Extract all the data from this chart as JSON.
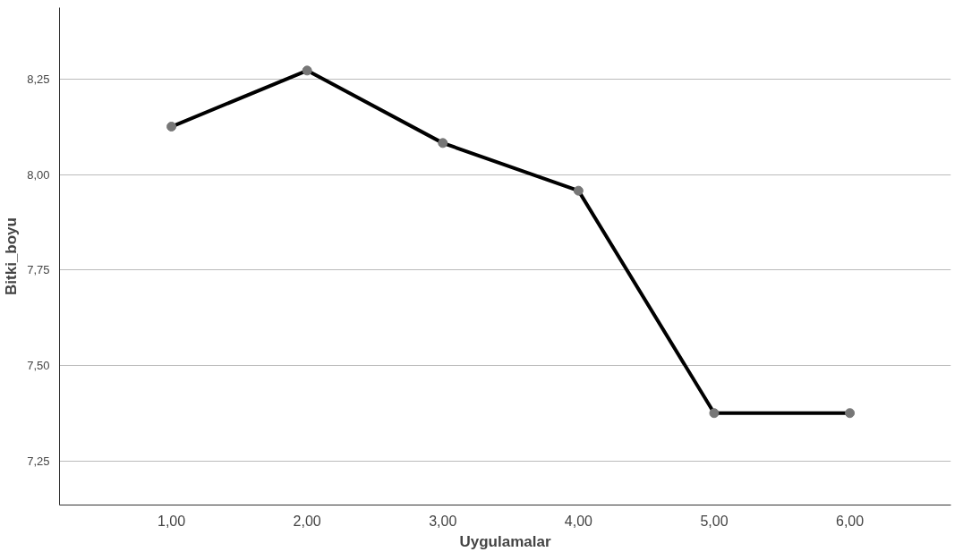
{
  "chart_data": {
    "type": "line",
    "xlabel": "Uygulamalar",
    "ylabel": "Bitki_boyu",
    "x": [
      1,
      2,
      3,
      4,
      5,
      6
    ],
    "series": [
      {
        "color": "#000000",
        "values": [
          8.126,
          8.273,
          8.083,
          7.958,
          7.375,
          7.375
        ]
      }
    ],
    "xlim": [
      0.175,
      6.745
    ],
    "ylim": [
      7.134,
      8.438
    ],
    "xticks": [
      {
        "value": 1,
        "label": "1,00"
      },
      {
        "value": 2,
        "label": "2,00"
      },
      {
        "value": 3,
        "label": "3,00"
      },
      {
        "value": 4,
        "label": "4,00"
      },
      {
        "value": 5,
        "label": "5,00"
      },
      {
        "value": 6,
        "label": "6,00"
      }
    ],
    "yticks": [
      {
        "value": 7.25,
        "label": "7,25"
      },
      {
        "value": 7.5,
        "label": "7,50"
      },
      {
        "value": 7.75,
        "label": "7,75"
      },
      {
        "value": 8.0,
        "label": "8,00"
      },
      {
        "value": 8.25,
        "label": "8,25"
      }
    ],
    "grid": "y",
    "marker": "circle",
    "line_style": "solid"
  }
}
